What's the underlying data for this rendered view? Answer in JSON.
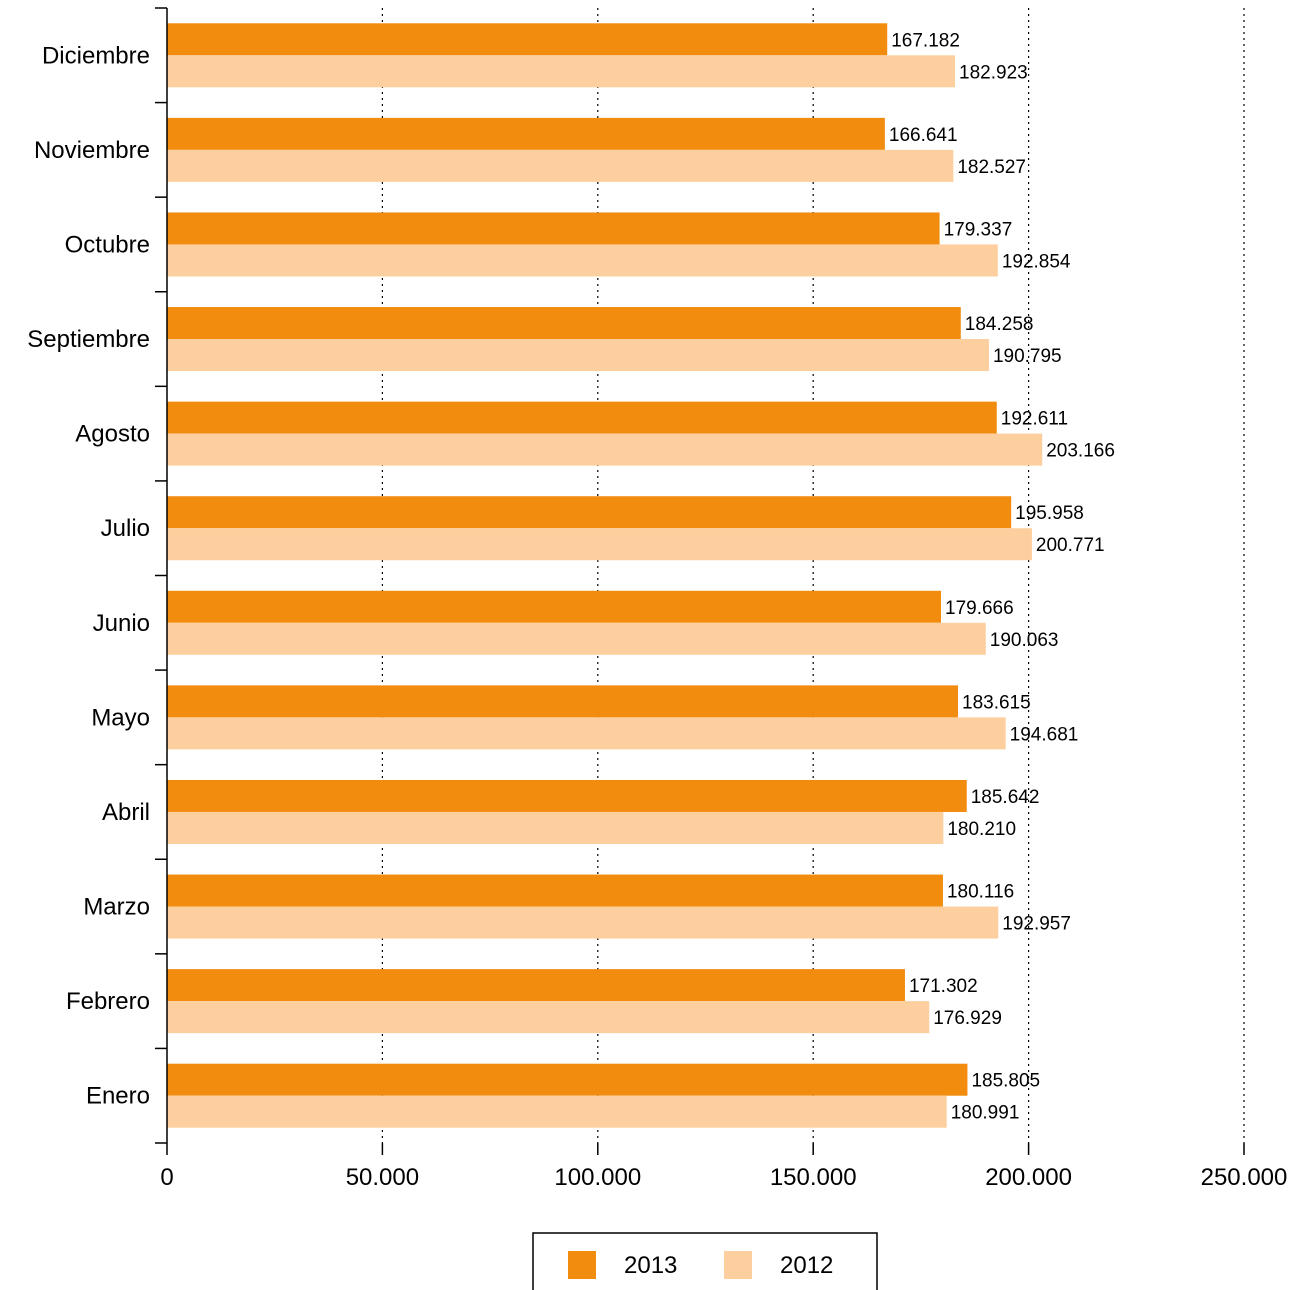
{
  "chart_data": {
    "type": "bar",
    "orientation": "horizontal",
    "categories": [
      "Enero",
      "Febrero",
      "Marzo",
      "Abril",
      "Mayo",
      "Junio",
      "Julio",
      "Agosto",
      "Septiembre",
      "Octubre",
      "Noviembre",
      "Diciembre"
    ],
    "series": [
      {
        "name": "2013",
        "color": "#F28C0F",
        "values": [
          185805,
          171302,
          180116,
          185642,
          183615,
          179666,
          195958,
          192611,
          184258,
          179337,
          166641,
          167182
        ],
        "labels": [
          "185.805",
          "171.302",
          "180.116",
          "185.642",
          "183.615",
          "179.666",
          "195.958",
          "192.611",
          "184.258",
          "179.337",
          "166.641",
          "167.182"
        ]
      },
      {
        "name": "2012",
        "color": "#FDCF9E",
        "values": [
          180991,
          176929,
          192957,
          180210,
          194681,
          190063,
          200771,
          203166,
          190795,
          192854,
          182527,
          182923
        ],
        "labels": [
          "180.991",
          "176.929",
          "192.957",
          "180.210",
          "194.681",
          "190.063",
          "200.771",
          "203.166",
          "190.795",
          "192.854",
          "182.527",
          "182.923"
        ]
      }
    ],
    "xlim": [
      0,
      250000
    ],
    "x_ticks": [
      0,
      50000,
      100000,
      150000,
      200000,
      250000
    ],
    "x_tick_labels": [
      "0",
      "50.000",
      "100.000",
      "150.000",
      "200.000",
      "250.000"
    ],
    "grid": "vertical dotted",
    "legend": "bottom-center",
    "title": "",
    "xlabel": "",
    "ylabel": ""
  }
}
